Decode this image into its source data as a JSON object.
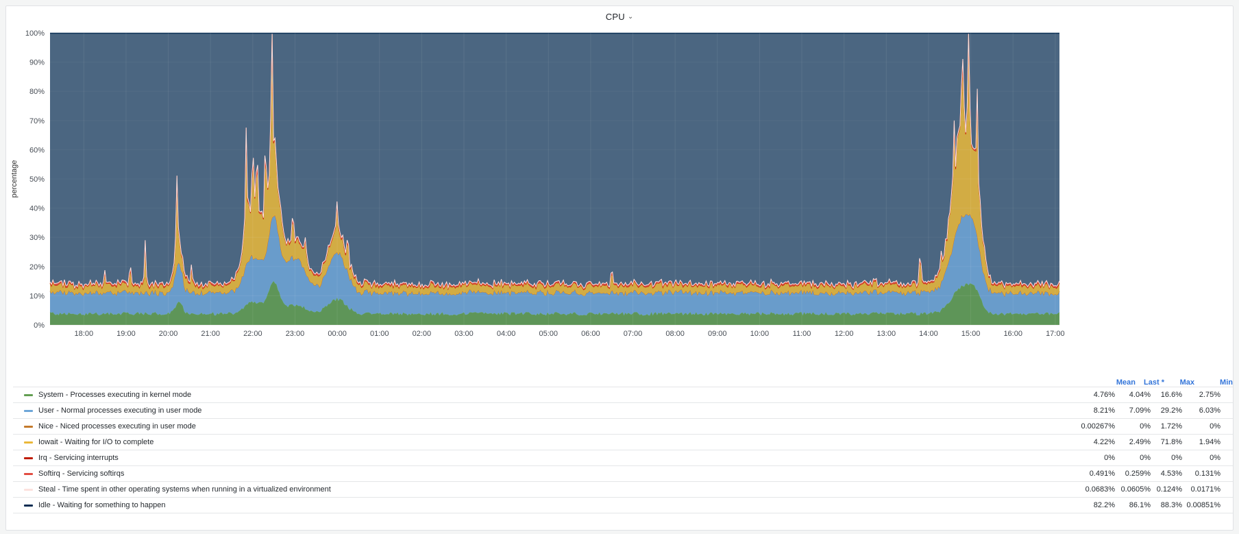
{
  "panel": {
    "title": "CPU",
    "chevron_icon": "chevron-down-icon"
  },
  "chart_data": {
    "type": "area",
    "stacked": true,
    "ylabel": "percentage",
    "ylim": [
      0,
      100
    ],
    "yticks": [
      "0%",
      "10%",
      "20%",
      "30%",
      "40%",
      "50%",
      "60%",
      "70%",
      "80%",
      "90%",
      "100%"
    ],
    "x_start_hour": 17.2,
    "x_end_hour": 41.1,
    "xticks": [
      "18:00",
      "19:00",
      "20:00",
      "21:00",
      "22:00",
      "23:00",
      "00:00",
      "01:00",
      "02:00",
      "03:00",
      "04:00",
      "05:00",
      "06:00",
      "07:00",
      "08:00",
      "09:00",
      "10:00",
      "11:00",
      "12:00",
      "13:00",
      "14:00",
      "15:00",
      "16:00",
      "17:00"
    ],
    "grid": true,
    "series": [
      {
        "name": "System - Processes executing in kernel mode",
        "color": "#629e51",
        "mean": "4.76%",
        "last": "4.04%",
        "max": "16.6%",
        "min": "2.75%"
      },
      {
        "name": "User - Normal processes executing in user mode",
        "color": "#6ea6d8",
        "mean": "8.21%",
        "last": "7.09%",
        "max": "29.2%",
        "min": "6.03%"
      },
      {
        "name": "Nice - Niced processes executing in user mode",
        "color": "#c47a2c",
        "mean": "0.00267%",
        "last": "0%",
        "max": "1.72%",
        "min": "0%"
      },
      {
        "name": "Iowait - Waiting for I/O to complete",
        "color": "#eab839",
        "mean": "4.22%",
        "last": "2.49%",
        "max": "71.8%",
        "min": "1.94%"
      },
      {
        "name": "Irq - Servicing interrupts",
        "color": "#bf1b00",
        "mean": "0%",
        "last": "0%",
        "max": "0%",
        "min": "0%"
      },
      {
        "name": "Softirq - Servicing softirqs",
        "color": "#e24d42",
        "mean": "0.491%",
        "last": "0.259%",
        "max": "4.53%",
        "min": "0.131%"
      },
      {
        "name": "Steal - Time spent in other operating systems when running in a virtualized environment",
        "color": "#fce2de",
        "mean": "0.0683%",
        "last": "0.0605%",
        "max": "0.124%",
        "min": "0.0171%"
      },
      {
        "name": "Idle - Waiting for something to happen",
        "color": "#052b51",
        "mean": "82.2%",
        "last": "86.1%",
        "max": "88.3%",
        "min": "0.00851%"
      }
    ],
    "legend_columns": {
      "mean": "Mean",
      "last": "Last *",
      "max": "Max",
      "min": "Min"
    },
    "legend_placement": "bottom"
  }
}
